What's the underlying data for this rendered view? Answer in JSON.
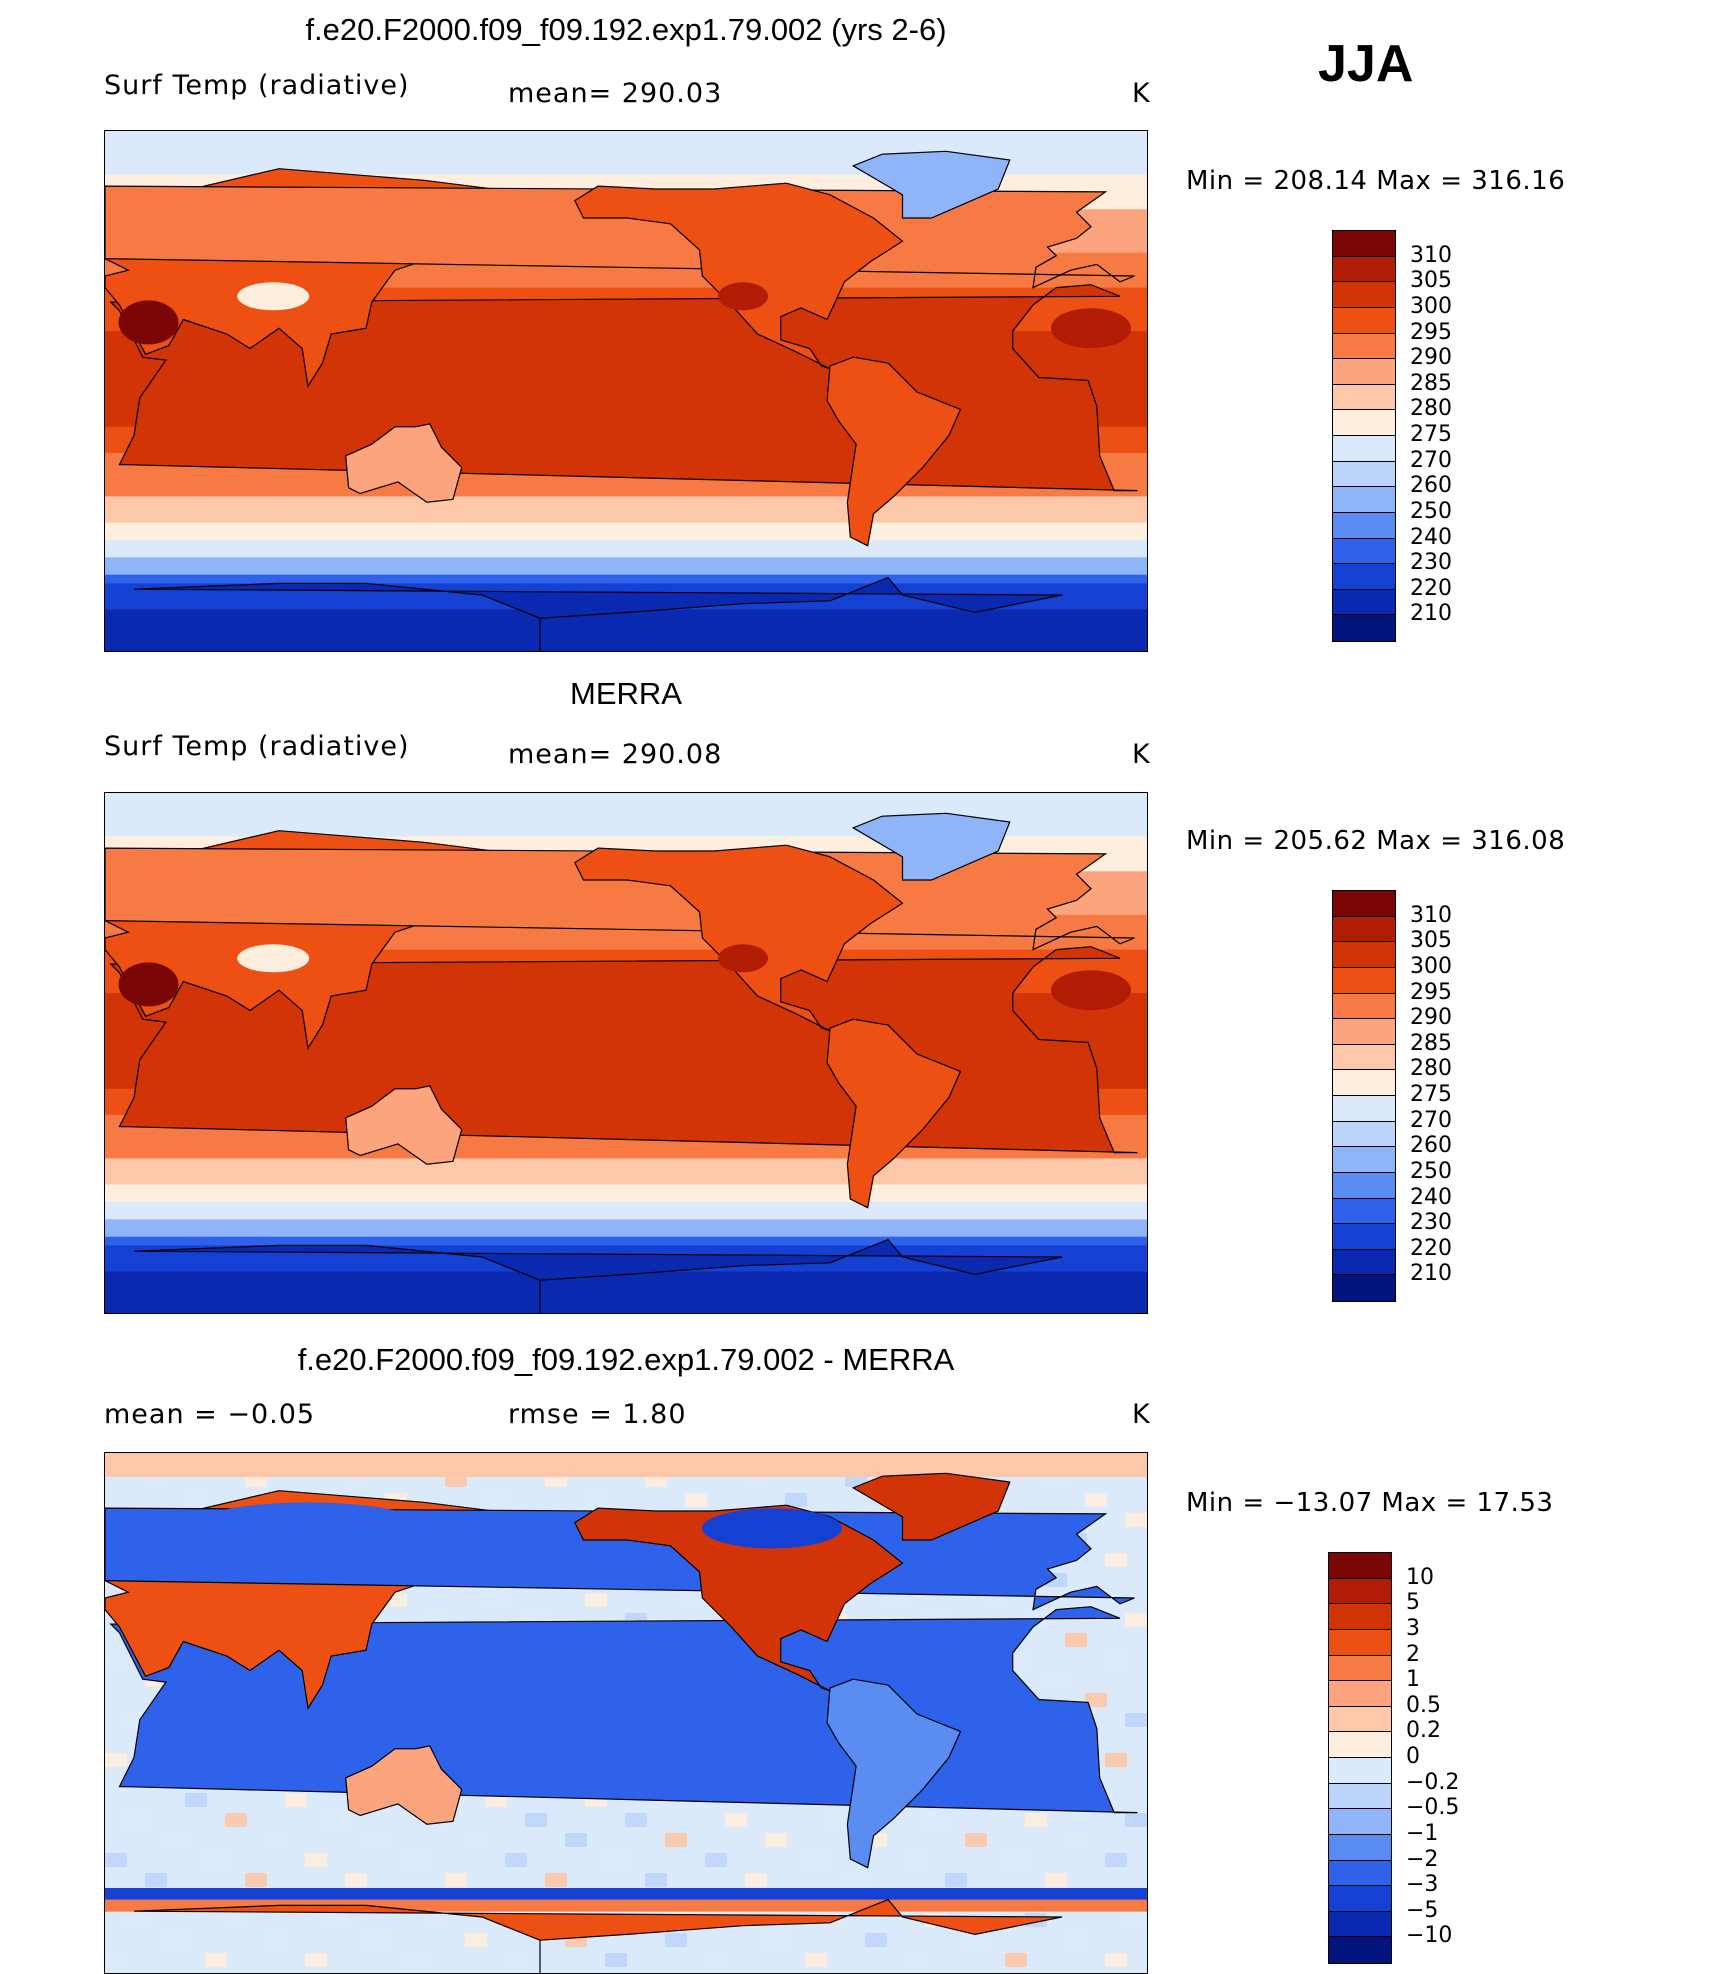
{
  "season": "JJA",
  "panels": [
    {
      "id": "model",
      "title": "f.e20.F2000.f09_f09.192.exp1.79.002 (yrs 2-6)",
      "left_label": "Surf Temp  (radiative)",
      "center_label": "mean=  290.03",
      "units": "K",
      "minmax": "Min  =  208.14  Max  =  316.16",
      "colorbar": {
        "labels": [
          "310",
          "305",
          "300",
          "295",
          "290",
          "285",
          "280",
          "275",
          "270",
          "260",
          "250",
          "240",
          "230",
          "220",
          "210"
        ],
        "colors": [
          "#7a0606",
          "#b01c04",
          "#d23408",
          "#ee4f12",
          "#f77a45",
          "#fca47e",
          "#fdc8a9",
          "#feeede",
          "#dbeafb",
          "#bcd4fa",
          "#8fb4f8",
          "#5a8cf2",
          "#2f62ea",
          "#1440d4",
          "#0b28b0",
          "#04147e"
        ]
      }
    },
    {
      "id": "obs",
      "title": "MERRA",
      "left_label": "Surf Temp  (radiative)",
      "center_label": "mean=  290.08",
      "units": "K",
      "minmax": "Min  =  205.62  Max  =  316.08",
      "colorbar": {
        "labels": [
          "310",
          "305",
          "300",
          "295",
          "290",
          "285",
          "280",
          "275",
          "270",
          "260",
          "250",
          "240",
          "230",
          "220",
          "210"
        ],
        "colors": [
          "#7a0606",
          "#b01c04",
          "#d23408",
          "#ee4f12",
          "#f77a45",
          "#fca47e",
          "#fdc8a9",
          "#feeede",
          "#dbeafb",
          "#bcd4fa",
          "#8fb4f8",
          "#5a8cf2",
          "#2f62ea",
          "#1440d4",
          "#0b28b0",
          "#04147e"
        ]
      }
    },
    {
      "id": "diff",
      "title": "f.e20.F2000.f09_f09.192.exp1.79.002 - MERRA",
      "left_label": "mean  =    −0.05",
      "center_label": "rmse  =     1.80",
      "units": "K",
      "minmax": "Min  =  −13.07  Max  =    17.53",
      "colorbar": {
        "labels": [
          "10",
          "5",
          "3",
          "2",
          "1",
          "0.5",
          "0.2",
          "0",
          "−0.2",
          "−0.5",
          "−1",
          "−2",
          "−3",
          "−5",
          "−10"
        ],
        "colors": [
          "#7a0606",
          "#b01c04",
          "#d23408",
          "#ee4f12",
          "#f77a45",
          "#fca47e",
          "#fdc8a9",
          "#feeede",
          "#dbeafb",
          "#bcd4fa",
          "#8fb4f8",
          "#5a8cf2",
          "#2f62ea",
          "#1440d4",
          "#0b28b0",
          "#04147e"
        ]
      }
    }
  ]
}
